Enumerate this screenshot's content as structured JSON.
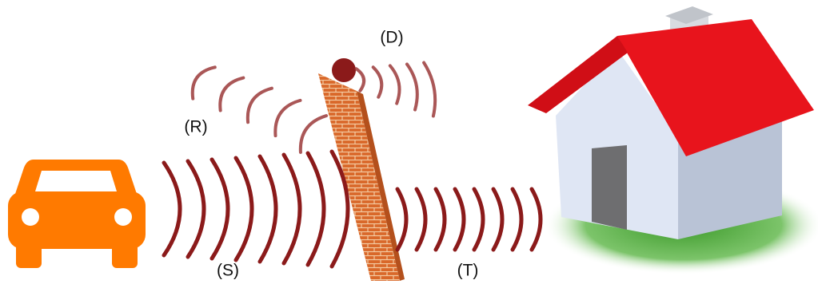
{
  "labels": [
    "(D)",
    "(R)",
    "(S)",
    "(T)"
  ]
}
